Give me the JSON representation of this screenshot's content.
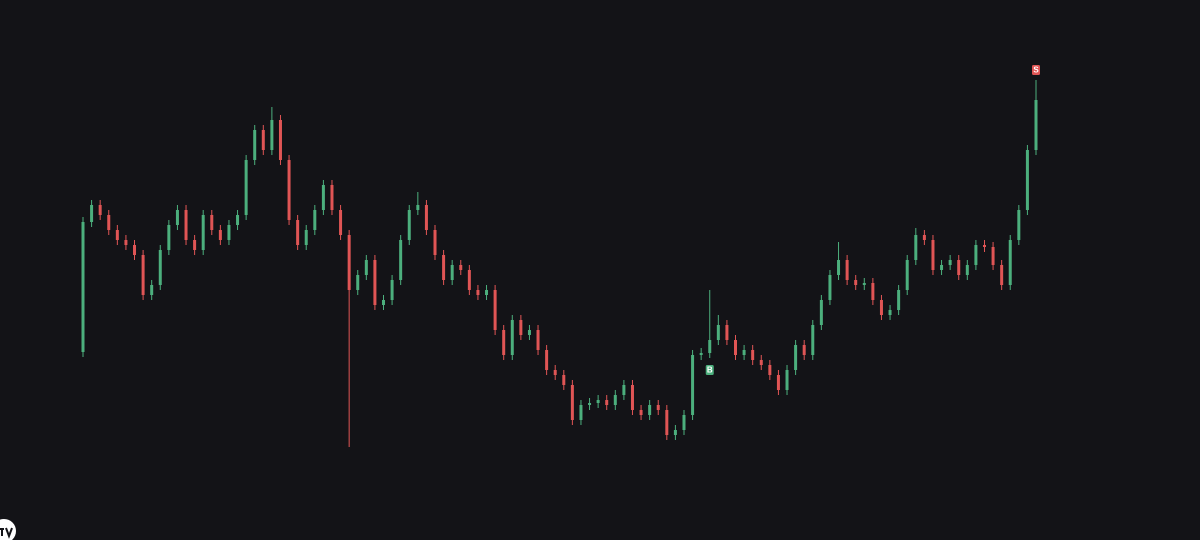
{
  "chart_data": {
    "type": "candlestick",
    "ylim": [
      0,
      540
    ],
    "up_color": "#4caf7d",
    "down_color": "#e05555",
    "open": [
      188,
      318,
      335,
      325,
      310,
      300,
      295,
      285,
      245,
      255,
      290,
      315,
      330,
      300,
      290,
      325,
      310,
      300,
      315,
      325,
      380,
      410,
      390,
      420,
      380,
      320,
      295,
      310,
      330,
      355,
      330,
      305,
      250,
      265,
      280,
      235,
      240,
      260,
      300,
      330,
      335,
      310,
      285,
      260,
      275,
      270,
      250,
      245,
      250,
      210,
      185,
      220,
      205,
      210,
      190,
      170,
      165,
      155,
      120,
      135,
      137,
      140,
      135,
      145,
      155,
      130,
      125,
      135,
      130,
      105,
      110,
      125,
      185,
      187,
      200,
      215,
      200,
      185,
      190,
      180,
      175,
      165,
      150,
      170,
      195,
      185,
      215,
      240,
      265,
      280,
      260,
      255,
      257,
      240,
      225,
      230,
      250,
      280,
      305,
      300,
      270,
      275,
      280,
      265,
      275,
      295,
      293,
      275,
      255,
      300,
      330,
      390
    ],
    "high": [
      323,
      340,
      340,
      330,
      315,
      305,
      300,
      290,
      260,
      295,
      320,
      335,
      335,
      305,
      330,
      330,
      315,
      320,
      330,
      385,
      415,
      415,
      433,
      425,
      385,
      325,
      315,
      335,
      360,
      360,
      335,
      310,
      270,
      285,
      285,
      245,
      265,
      305,
      335,
      348,
      340,
      315,
      290,
      280,
      280,
      275,
      255,
      255,
      255,
      215,
      225,
      225,
      215,
      215,
      195,
      175,
      170,
      160,
      140,
      142,
      145,
      145,
      150,
      160,
      160,
      135,
      140,
      140,
      135,
      115,
      130,
      190,
      192,
      250,
      225,
      220,
      205,
      195,
      195,
      185,
      180,
      170,
      175,
      200,
      200,
      220,
      245,
      270,
      298,
      285,
      265,
      262,
      262,
      245,
      235,
      255,
      285,
      312,
      310,
      305,
      280,
      285,
      285,
      280,
      300,
      300,
      298,
      280,
      305,
      335,
      395,
      460
    ],
    "low": [
      183,
      313,
      320,
      305,
      295,
      290,
      280,
      240,
      240,
      250,
      285,
      310,
      295,
      285,
      285,
      305,
      295,
      295,
      310,
      320,
      375,
      385,
      385,
      375,
      315,
      290,
      290,
      305,
      325,
      325,
      300,
      93,
      245,
      260,
      230,
      230,
      235,
      255,
      295,
      325,
      305,
      280,
      255,
      255,
      265,
      245,
      240,
      240,
      205,
      180,
      180,
      200,
      200,
      185,
      165,
      160,
      150,
      115,
      115,
      130,
      132,
      130,
      130,
      140,
      125,
      120,
      120,
      125,
      100,
      100,
      105,
      120,
      180,
      182,
      195,
      195,
      180,
      180,
      175,
      170,
      160,
      145,
      145,
      165,
      180,
      180,
      210,
      235,
      260,
      255,
      250,
      250,
      235,
      220,
      220,
      225,
      245,
      275,
      295,
      265,
      265,
      270,
      260,
      260,
      270,
      288,
      270,
      250,
      250,
      295,
      325,
      385
    ],
    "close": [
      318,
      335,
      325,
      310,
      300,
      295,
      285,
      245,
      255,
      290,
      315,
      330,
      300,
      290,
      325,
      310,
      300,
      315,
      325,
      380,
      410,
      390,
      420,
      380,
      320,
      295,
      310,
      330,
      355,
      330,
      305,
      250,
      265,
      280,
      235,
      240,
      260,
      300,
      330,
      335,
      310,
      285,
      260,
      275,
      270,
      250,
      245,
      250,
      210,
      185,
      220,
      205,
      210,
      190,
      170,
      165,
      155,
      120,
      135,
      137,
      140,
      135,
      145,
      155,
      130,
      125,
      135,
      130,
      105,
      110,
      125,
      185,
      187,
      200,
      215,
      200,
      185,
      190,
      180,
      175,
      165,
      150,
      170,
      195,
      185,
      215,
      240,
      265,
      280,
      260,
      255,
      257,
      240,
      225,
      230,
      250,
      280,
      305,
      300,
      270,
      275,
      280,
      265,
      275,
      295,
      293,
      275,
      255,
      300,
      330,
      390,
      440
    ],
    "markers": [
      {
        "text": "B",
        "x": 73,
        "kind": "buy",
        "color": "#4caf7d"
      },
      {
        "text": "S",
        "x": 111,
        "kind": "sell",
        "color": "#e05555"
      }
    ]
  }
}
